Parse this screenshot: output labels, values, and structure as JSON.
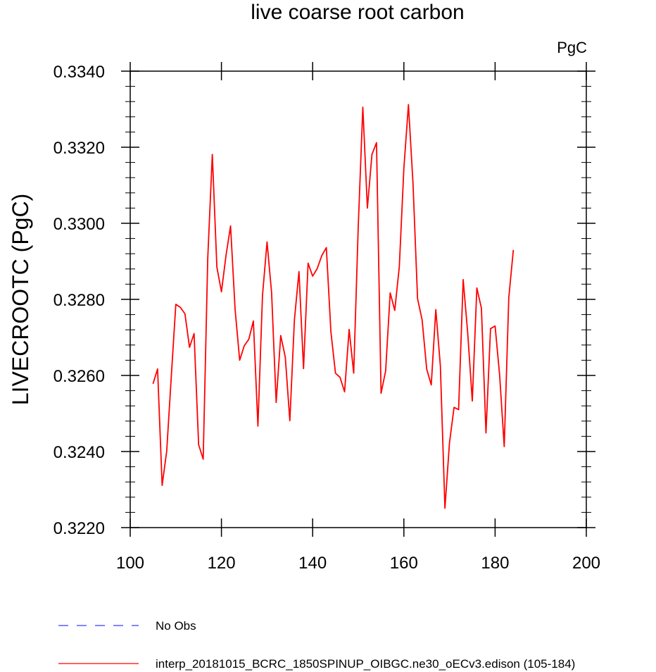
{
  "chart_data": {
    "type": "line",
    "title": "live coarse root carbon",
    "units_label": "PgC",
    "xlabel": "",
    "ylabel": "LIVECROOTC  (PgC)",
    "xlim": [
      100,
      200
    ],
    "ylim": [
      0.322,
      0.334
    ],
    "x_ticks": [
      100,
      120,
      140,
      160,
      180,
      200
    ],
    "x_tick_labels": [
      "100",
      "120",
      "140",
      "160",
      "180",
      "200"
    ],
    "y_ticks": [
      0.322,
      0.324,
      0.326,
      0.328,
      0.33,
      0.332,
      0.334
    ],
    "y_tick_labels": [
      "0.3220",
      "0.3240",
      "0.3260",
      "0.3280",
      "0.3300",
      "0.3320",
      "0.3340"
    ],
    "grid": false,
    "legend_position": "bottom-left",
    "legend": [
      {
        "name": "No Obs",
        "color": "#3a3aff",
        "dash": true
      },
      {
        "name": "interp_20181015_BCRC_1850SPINUP_OIBGC.ne30_oECv3.edison (105-184)",
        "color": "#ff0000",
        "dash": false
      }
    ],
    "series": [
      {
        "name": "interp_20181015_BCRC_1850SPINUP_OIBGC.ne30_oECv3.edison (105-184)",
        "color": "#ff0000",
        "x": [
          105,
          106,
          107,
          108,
          109,
          110,
          111,
          112,
          113,
          114,
          115,
          116,
          117,
          118,
          119,
          120,
          121,
          122,
          123,
          124,
          125,
          126,
          127,
          128,
          129,
          130,
          131,
          132,
          133,
          134,
          135,
          136,
          137,
          138,
          139,
          140,
          141,
          142,
          143,
          144,
          145,
          146,
          147,
          148,
          149,
          150,
          151,
          152,
          153,
          154,
          155,
          156,
          157,
          158,
          159,
          160,
          161,
          162,
          163,
          164,
          165,
          166,
          167,
          168,
          169,
          170,
          171,
          172,
          173,
          174,
          175,
          176,
          177,
          178,
          179,
          180,
          181,
          182,
          183,
          184
        ],
        "values": [
          0.32578,
          0.32617,
          0.32311,
          0.32401,
          0.32596,
          0.32787,
          0.32779,
          0.32762,
          0.32674,
          0.3271,
          0.32418,
          0.3238,
          0.32908,
          0.33181,
          0.32885,
          0.3282,
          0.32915,
          0.32993,
          0.32773,
          0.3264,
          0.32678,
          0.32695,
          0.32743,
          0.32467,
          0.3281,
          0.32951,
          0.32817,
          0.32529,
          0.32705,
          0.32648,
          0.32481,
          0.32746,
          0.32873,
          0.32618,
          0.32895,
          0.32861,
          0.32881,
          0.32915,
          0.32936,
          0.32715,
          0.32606,
          0.32595,
          0.32557,
          0.32721,
          0.32606,
          0.32993,
          0.33305,
          0.3304,
          0.33181,
          0.33212,
          0.32553,
          0.32612,
          0.32817,
          0.32771,
          0.32886,
          0.33145,
          0.33312,
          0.33105,
          0.32802,
          0.32746,
          0.32617,
          0.32575,
          0.32773,
          0.32625,
          0.32251,
          0.32423,
          0.32516,
          0.3251,
          0.32852,
          0.32711,
          0.32533,
          0.3283,
          0.32777,
          0.32449,
          0.32723,
          0.3273,
          0.326,
          0.32413,
          0.32804,
          0.3293
        ]
      }
    ]
  }
}
